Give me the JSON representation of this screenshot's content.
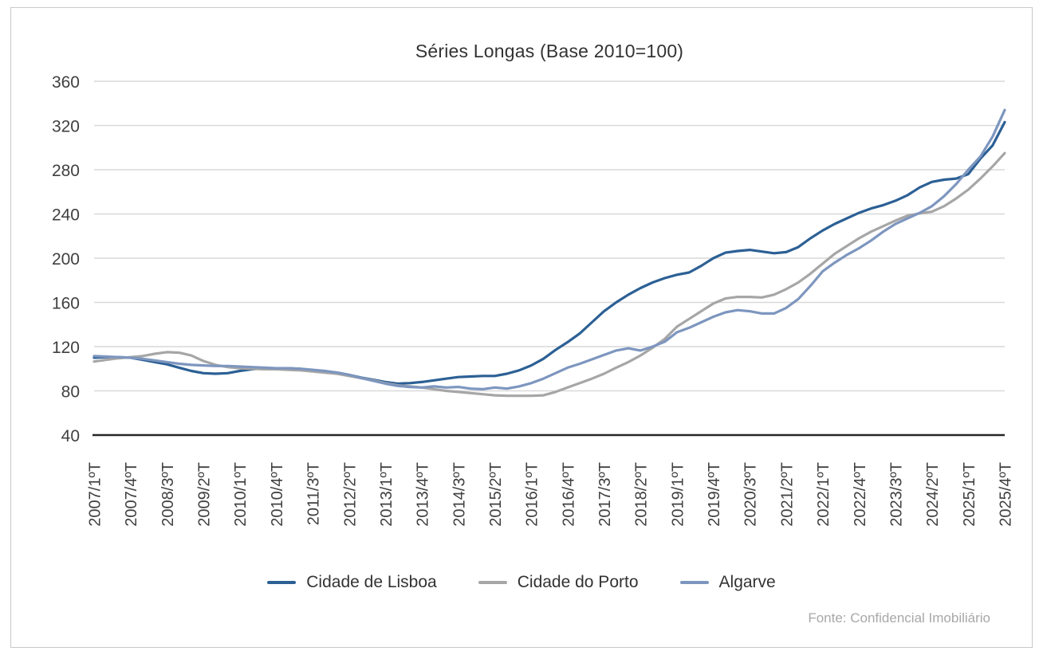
{
  "colors": {
    "grid": "#d9d9d9",
    "axis": "#262626",
    "tick_text": "#404040",
    "title_text": "#333333",
    "source_text": "#a8a8a8",
    "frame_border": "#c9c9c9",
    "lisboa": "#2c6095",
    "porto": "#a6a6a6",
    "algarve": "#7d96bf"
  },
  "chart_data": {
    "type": "line",
    "title": "Séries Longas (Base 2010=100)",
    "source": "Fonte: Confidencial Imobiliário",
    "ylim": [
      40,
      360
    ],
    "ytick_step": 40,
    "x_tick_step": 3,
    "grid": true,
    "legend_position": "bottom",
    "x": [
      "2007/1ºT",
      "2007/2ºT",
      "2007/3ºT",
      "2007/4ºT",
      "2008/1ºT",
      "2008/2ºT",
      "2008/3ºT",
      "2008/4ºT",
      "2009/1ºT",
      "2009/2ºT",
      "2009/3ºT",
      "2009/4ºT",
      "2010/1ºT",
      "2010/2ºT",
      "2010/3ºT",
      "2010/4ºT",
      "2011/1ºT",
      "2011/2ºT",
      "2011/3ºT",
      "2011/4ºT",
      "2012/1ºT",
      "2012/2ºT",
      "2012/3ºT",
      "2012/4ºT",
      "2013/1ºT",
      "2013/2ºT",
      "2013/3ºT",
      "2013/4ºT",
      "2014/1ºT",
      "2014/2ºT",
      "2014/3ºT",
      "2014/4ºT",
      "2015/1ºT",
      "2015/2ºT",
      "2015/3ºT",
      "2015/4ºT",
      "2016/1ºT",
      "2016/2ºT",
      "2016/3ºT",
      "2016/4ºT",
      "2017/1ºT",
      "2017/2ºT",
      "2017/3ºT",
      "2017/4ºT",
      "2018/1ºT",
      "2018/2ºT",
      "2018/3ºT",
      "2018/4ºT",
      "2019/1ºT",
      "2019/2ºT",
      "2019/3ºT",
      "2019/4ºT",
      "2020/1ºT",
      "2020/2ºT",
      "2020/3ºT",
      "2020/4ºT",
      "2021/1ºT",
      "2021/2ºT",
      "2021/3ºT",
      "2021/4ºT",
      "2022/1ºT",
      "2022/2ºT",
      "2022/3ºT",
      "2022/4ºT",
      "2023/1ºT",
      "2023/2ºT",
      "2023/3ºT",
      "2023/4ºT",
      "2024/1ºT",
      "2024/2ºT",
      "2024/3ºT",
      "2024/4ºT",
      "2025/1ºT",
      "2025/2ºT",
      "2025/3ºT",
      "2025/4ºT"
    ],
    "series": [
      {
        "name": "Cidade de Lisboa",
        "color": "#2c6095",
        "values": [
          110,
          110.5,
          110.5,
          110,
          108,
          106,
          104,
          101,
          98,
          96,
          95.5,
          96,
          98,
          99.5,
          100.5,
          100.5,
          100.5,
          100,
          98.5,
          97.5,
          96.5,
          94.5,
          92,
          90,
          88,
          86.5,
          87,
          88,
          89.5,
          91,
          92.5,
          93,
          93.5,
          93.5,
          95.5,
          98.5,
          103,
          109,
          117,
          124,
          132,
          142,
          152,
          160,
          167,
          173,
          178,
          182,
          185,
          187,
          193,
          200,
          205,
          206.5,
          207.5,
          206,
          204.5,
          205.5,
          210,
          218,
          225,
          231,
          236,
          241,
          245,
          248,
          252,
          257,
          264,
          269,
          271,
          272,
          276,
          290,
          302,
          323
        ]
      },
      {
        "name": "Cidade do Porto",
        "color": "#a6a6a6",
        "values": [
          106.5,
          108,
          109.5,
          110.5,
          111.5,
          113.5,
          115,
          114.5,
          112,
          107,
          103.5,
          101.5,
          100.5,
          100,
          99.5,
          99.5,
          99,
          98.5,
          97.5,
          96.5,
          95.5,
          93.5,
          91.5,
          89.5,
          87,
          85,
          84,
          83,
          81.5,
          80,
          79,
          78,
          77,
          76,
          75.5,
          75.5,
          75.5,
          76,
          79,
          83,
          87,
          91,
          95.5,
          101,
          106,
          112,
          119,
          127,
          138,
          145,
          152,
          159,
          163.5,
          165,
          165,
          164.5,
          167,
          172,
          178,
          186,
          195,
          204,
          211,
          218,
          224,
          229,
          234,
          238.5,
          240.5,
          242,
          247,
          254,
          262,
          272,
          283,
          295
        ]
      },
      {
        "name": "Algarve",
        "color": "#7d96bf",
        "values": [
          111.5,
          111,
          110.5,
          110,
          109,
          107.5,
          106,
          104.5,
          103.5,
          103,
          102.5,
          102.5,
          102,
          101.5,
          101,
          100.5,
          100.5,
          100,
          99,
          98,
          96.5,
          94.5,
          91.5,
          89,
          86.5,
          84.5,
          83.5,
          83,
          84,
          83,
          83.5,
          82,
          81.5,
          83,
          82,
          84,
          87,
          91,
          96,
          101,
          104.5,
          108.5,
          112.5,
          116.5,
          118.5,
          116.5,
          120,
          124.5,
          133,
          137,
          142,
          147,
          151,
          153,
          152,
          150,
          150,
          155,
          163,
          175,
          188,
          196,
          203,
          209,
          216,
          224,
          231,
          236,
          241,
          247,
          256,
          267,
          280,
          292,
          310,
          334
        ]
      }
    ]
  }
}
